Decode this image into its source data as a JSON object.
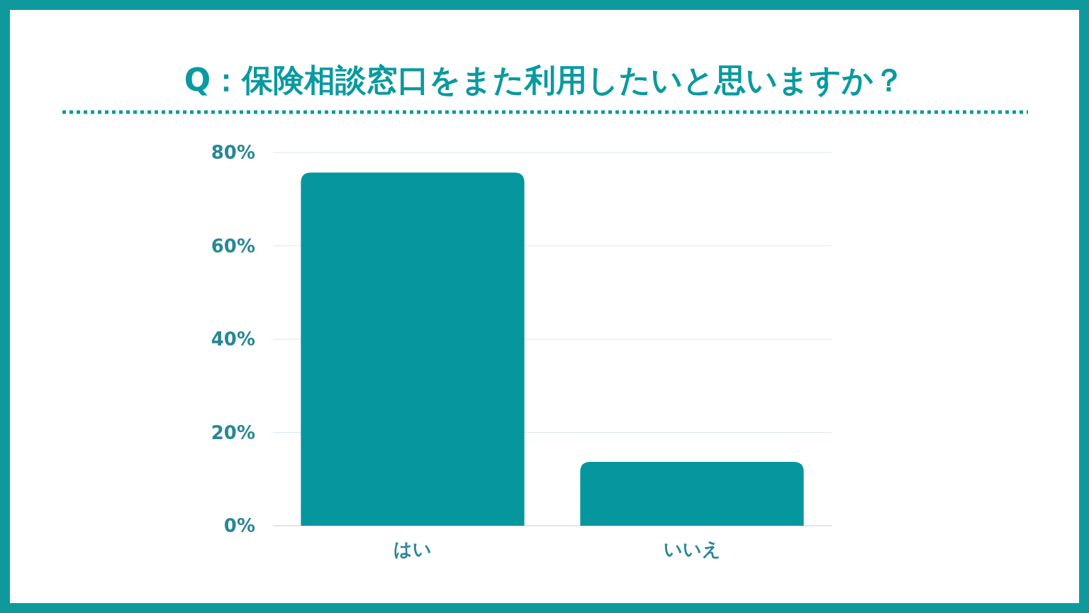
{
  "chart_data": {
    "type": "bar",
    "title": "Q：保険相談窓口をまた利用したいと思いますか？",
    "categories": [
      "はい",
      "いいえ"
    ],
    "values": [
      75.7,
      13.7
    ],
    "color": "#05969e",
    "ylim": [
      0,
      80
    ],
    "yticks": [
      {
        "value": 0,
        "label": "0%"
      },
      {
        "value": 20,
        "label": "20%"
      },
      {
        "value": 40,
        "label": "40%"
      },
      {
        "value": 60,
        "label": "60%"
      },
      {
        "value": 80,
        "label": "80%"
      }
    ],
    "grid": "y"
  }
}
